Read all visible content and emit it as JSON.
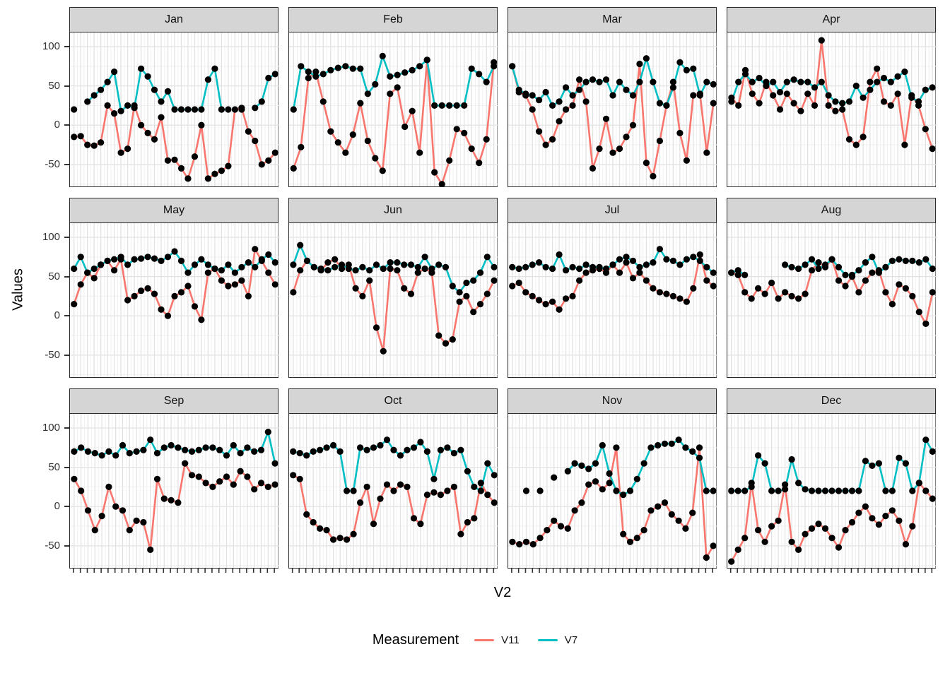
{
  "figure": {
    "xlabel": "V2",
    "ylabel": "Values"
  },
  "legend": {
    "title": "Measurement",
    "items": [
      {
        "label": "V11",
        "color": "#F8766D"
      },
      {
        "label": "V7",
        "color": "#00BFC4"
      }
    ]
  },
  "chart_data": {
    "type": "line",
    "faceted_by": "month",
    "ylim": [
      -78,
      118
    ],
    "yticks": [
      100,
      50,
      0,
      -50
    ],
    "yticks_minor": [
      75,
      25,
      -25,
      -75
    ],
    "x_tick_labels_visible": false,
    "grid": "on",
    "grid_major": "#E2E2E2",
    "grid_minor": "#F0F0F0",
    "point_color": "#000000",
    "strip_bg": "#D5D5D5",
    "series_colors": {
      "V11": "#F8766D",
      "V7": "#00BFC4"
    },
    "legend_position": "bottom",
    "facets": [
      {
        "label": "Jan",
        "V7": [
          20,
          null,
          30,
          38,
          45,
          55,
          68,
          18,
          25,
          22,
          72,
          62,
          45,
          30,
          43,
          20,
          20,
          20,
          20,
          20,
          58,
          72,
          20,
          20,
          null,
          20,
          null,
          22,
          30,
          60,
          65
        ],
        "V11": [
          -15,
          -14,
          -25,
          -26,
          -22,
          25,
          15,
          -35,
          -30,
          25,
          0,
          -10,
          -18,
          10,
          -45,
          -44,
          -55,
          -68,
          -40,
          0,
          -68,
          -62,
          -58,
          -52,
          20,
          22,
          -8,
          -20,
          -50,
          -45,
          -35
        ]
      },
      {
        "label": "Feb",
        "V7": [
          20,
          75,
          68,
          62,
          65,
          70,
          73,
          75,
          72,
          72,
          40,
          52,
          88,
          62,
          64,
          67,
          70,
          75,
          83,
          25,
          25,
          25,
          25,
          25,
          72,
          65,
          55,
          75
        ],
        "V11": [
          -55,
          -28,
          60,
          68,
          30,
          -8,
          -22,
          -35,
          -12,
          28,
          -20,
          -42,
          -58,
          40,
          48,
          -2,
          18,
          -35,
          83,
          -60,
          -75,
          -45,
          -5,
          -10,
          -30,
          -48,
          -18,
          80
        ]
      },
      {
        "label": "Mar",
        "V7": [
          75,
          45,
          40,
          38,
          32,
          42,
          25,
          30,
          48,
          38,
          45,
          55,
          58,
          55,
          58,
          38,
          55,
          45,
          38,
          55,
          85,
          55,
          28,
          25,
          48,
          80,
          70,
          72,
          38,
          55,
          52
        ],
        "V11": [
          75,
          42,
          38,
          20,
          -8,
          -25,
          -18,
          5,
          20,
          25,
          58,
          30,
          -55,
          -30,
          8,
          -35,
          -30,
          -15,
          0,
          78,
          -48,
          -65,
          -20,
          25,
          55,
          -10,
          -45,
          38,
          40,
          -35,
          28
        ]
      },
      {
        "label": "Apr",
        "V7": [
          30,
          55,
          65,
          55,
          60,
          50,
          55,
          42,
          55,
          58,
          55,
          55,
          48,
          55,
          38,
          30,
          28,
          30,
          50,
          35,
          45,
          55,
          60,
          55,
          62,
          68,
          35,
          30,
          45,
          48
        ],
        "V11": [
          35,
          25,
          70,
          40,
          28,
          55,
          38,
          20,
          40,
          28,
          18,
          40,
          25,
          108,
          25,
          18,
          20,
          -18,
          -25,
          -15,
          55,
          72,
          30,
          25,
          40,
          -25,
          38,
          25,
          -5,
          -30
        ]
      },
      {
        "label": "May",
        "V7": [
          60,
          75,
          55,
          60,
          65,
          70,
          72,
          75,
          65,
          72,
          73,
          75,
          73,
          70,
          75,
          82,
          70,
          55,
          65,
          72,
          65,
          60,
          58,
          65,
          55,
          62,
          68,
          62,
          72,
          78,
          68
        ],
        "V11": [
          15,
          40,
          55,
          48,
          65,
          70,
          58,
          72,
          20,
          25,
          32,
          35,
          28,
          8,
          0,
          25,
          30,
          38,
          12,
          -5,
          55,
          60,
          45,
          38,
          40,
          45,
          25,
          85,
          70,
          55,
          40
        ]
      },
      {
        "label": "Jun",
        "V7": [
          65,
          90,
          70,
          62,
          60,
          58,
          62,
          65,
          60,
          58,
          62,
          58,
          65,
          60,
          68,
          68,
          65,
          65,
          62,
          75,
          60,
          65,
          62,
          38,
          30,
          42,
          45,
          55,
          75,
          62
        ],
        "V11": [
          30,
          58,
          70,
          62,
          58,
          68,
          72,
          60,
          65,
          35,
          25,
          45,
          -15,
          -45,
          60,
          58,
          35,
          28,
          55,
          60,
          55,
          -25,
          -35,
          -30,
          18,
          25,
          5,
          15,
          28,
          45
        ]
      },
      {
        "label": "Jul",
        "V7": [
          62,
          60,
          62,
          65,
          68,
          62,
          60,
          78,
          58,
          62,
          60,
          65,
          62,
          62,
          60,
          65,
          72,
          75,
          70,
          62,
          65,
          68,
          85,
          72,
          70,
          65,
          72,
          75,
          70,
          62,
          55
        ],
        "V11": [
          38,
          42,
          30,
          25,
          20,
          15,
          18,
          8,
          22,
          25,
          45,
          55,
          58,
          60,
          55,
          65,
          55,
          68,
          48,
          55,
          45,
          35,
          30,
          28,
          25,
          22,
          18,
          35,
          78,
          45,
          38
        ]
      },
      {
        "label": "Aug",
        "V7": [
          55,
          58,
          52,
          null,
          null,
          null,
          null,
          null,
          65,
          62,
          60,
          65,
          72,
          60,
          65,
          72,
          62,
          52,
          52,
          58,
          68,
          75,
          55,
          62,
          70,
          72,
          70,
          70,
          68,
          72,
          60
        ],
        "V11": [
          55,
          52,
          30,
          22,
          35,
          28,
          42,
          22,
          30,
          25,
          22,
          28,
          58,
          68,
          62,
          72,
          45,
          38,
          50,
          30,
          45,
          55,
          58,
          30,
          15,
          40,
          35,
          25,
          5,
          -10,
          30
        ]
      },
      {
        "label": "Sep",
        "V7": [
          70,
          75,
          70,
          68,
          65,
          70,
          65,
          78,
          68,
          70,
          72,
          85,
          68,
          75,
          78,
          75,
          72,
          70,
          72,
          75,
          75,
          72,
          65,
          78,
          68,
          75,
          70,
          72,
          95,
          55
        ],
        "V11": [
          35,
          20,
          -5,
          -30,
          -12,
          25,
          0,
          -5,
          -30,
          -18,
          -20,
          -55,
          35,
          10,
          8,
          5,
          55,
          40,
          38,
          30,
          25,
          32,
          38,
          28,
          45,
          38,
          22,
          30,
          25,
          28
        ]
      },
      {
        "label": "Oct",
        "V7": [
          70,
          68,
          65,
          70,
          72,
          75,
          78,
          70,
          20,
          20,
          75,
          72,
          75,
          78,
          85,
          72,
          65,
          72,
          75,
          82,
          70,
          35,
          72,
          75,
          68,
          72,
          45,
          25,
          20,
          55,
          40
        ],
        "V11": [
          40,
          35,
          -10,
          -20,
          -28,
          -30,
          -42,
          -40,
          -42,
          -35,
          5,
          25,
          -22,
          10,
          28,
          20,
          28,
          25,
          -15,
          -22,
          15,
          18,
          15,
          20,
          25,
          -35,
          -20,
          -15,
          30,
          15,
          5
        ]
      },
      {
        "label": "Nov",
        "V7": [
          null,
          null,
          20,
          null,
          20,
          null,
          37,
          null,
          45,
          55,
          52,
          48,
          55,
          78,
          42,
          20,
          15,
          20,
          35,
          55,
          75,
          78,
          80,
          80,
          85,
          75,
          70,
          62,
          20,
          20
        ],
        "V11": [
          -45,
          -48,
          -45,
          -48,
          -40,
          -30,
          -18,
          -25,
          -28,
          -5,
          5,
          28,
          32,
          22,
          30,
          75,
          -35,
          -45,
          -40,
          -30,
          -5,
          0,
          5,
          -10,
          -18,
          -28,
          -8,
          75,
          -65,
          -50
        ]
      },
      {
        "label": "Dec",
        "V7": [
          20,
          20,
          20,
          25,
          65,
          55,
          20,
          20,
          22,
          60,
          30,
          22,
          20,
          20,
          20,
          20,
          20,
          20,
          20,
          20,
          58,
          52,
          55,
          20,
          20,
          62,
          55,
          20,
          30,
          85,
          70
        ],
        "V11": [
          -70,
          -55,
          -40,
          30,
          -30,
          -45,
          -25,
          -18,
          28,
          -45,
          -55,
          -35,
          -28,
          -22,
          -28,
          -40,
          -52,
          -30,
          -20,
          -8,
          0,
          -15,
          -23,
          -12,
          -5,
          -18,
          -48,
          -25,
          30,
          20,
          10
        ]
      }
    ]
  }
}
